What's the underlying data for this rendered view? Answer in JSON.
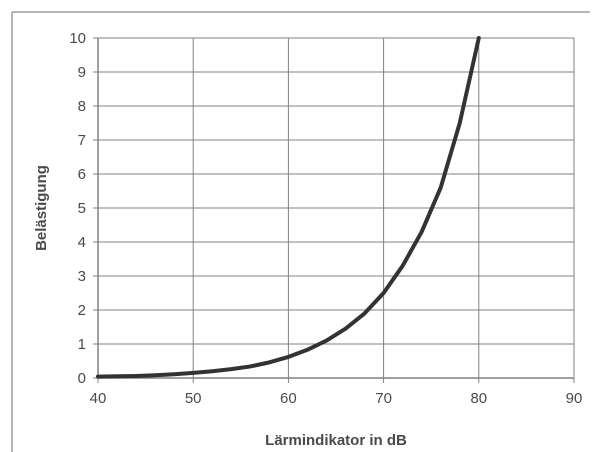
{
  "chart_data": {
    "type": "line",
    "xlabel": "Lärmindikator in dB",
    "ylabel": "Belästigung",
    "xlim": [
      40,
      90
    ],
    "ylim": [
      0,
      10
    ],
    "xticks": [
      40,
      50,
      60,
      70,
      80,
      90
    ],
    "yticks": [
      0,
      1,
      2,
      3,
      4,
      5,
      6,
      7,
      8,
      9,
      10
    ],
    "grid": true,
    "series": [
      {
        "x": [
          40,
          42,
          44,
          46,
          48,
          50,
          52,
          54,
          56,
          58,
          60,
          62,
          64,
          66,
          68,
          70,
          72,
          74,
          76,
          78,
          80
        ],
        "y": [
          0.04,
          0.05,
          0.06,
          0.08,
          0.11,
          0.15,
          0.2,
          0.26,
          0.34,
          0.46,
          0.62,
          0.83,
          1.1,
          1.45,
          1.9,
          2.5,
          3.3,
          4.3,
          5.6,
          7.5,
          10.0
        ]
      }
    ],
    "colors": {
      "line": "#333333",
      "grid": "#808080",
      "frame": "#808080"
    }
  }
}
